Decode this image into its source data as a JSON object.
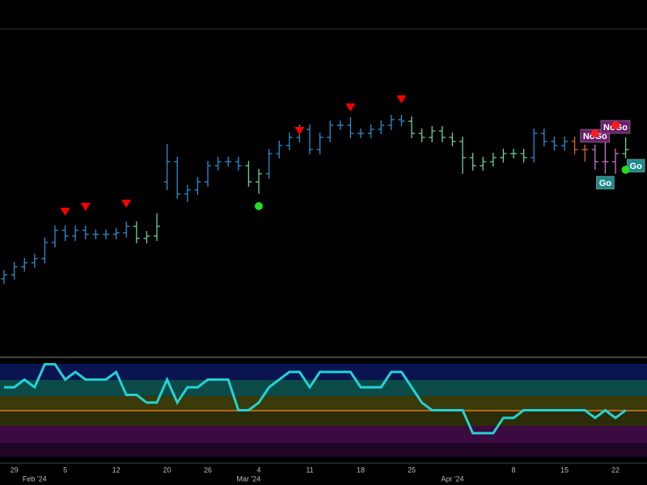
{
  "chart_data": {
    "type": "ohlc",
    "ylim": [
      0,
      404
    ],
    "open": [
      95,
      100,
      110,
      115,
      120,
      140,
      155,
      148,
      155,
      150,
      150,
      150,
      152,
      160,
      145,
      148,
      215,
      240,
      200,
      205,
      215,
      235,
      240,
      240,
      235,
      215,
      225,
      250,
      260,
      270,
      280,
      255,
      270,
      285,
      285,
      275,
      275,
      280,
      285,
      292,
      290,
      275,
      270,
      278,
      270,
      265,
      245,
      235,
      240,
      245,
      250,
      250,
      245,
      275,
      265,
      260,
      265,
      255,
      255,
      240,
      240,
      250
    ],
    "high": [
      106,
      116,
      121,
      126,
      146,
      161,
      161,
      161,
      161,
      156,
      156,
      158,
      166,
      166,
      154,
      176,
      262,
      246,
      211,
      221,
      241,
      246,
      246,
      246,
      241,
      231,
      256,
      266,
      276,
      286,
      286,
      276,
      291,
      291,
      295,
      281,
      286,
      291,
      298,
      298,
      296,
      281,
      284,
      284,
      276,
      271,
      251,
      246,
      251,
      256,
      256,
      256,
      281,
      281,
      271,
      271,
      271,
      261,
      261,
      266,
      256,
      270
    ],
    "low": [
      89,
      94,
      104,
      109,
      114,
      134,
      142,
      142,
      144,
      144,
      144,
      144,
      146,
      139,
      139,
      142,
      205,
      194,
      190,
      199,
      209,
      229,
      234,
      229,
      209,
      200,
      219,
      244,
      254,
      264,
      249,
      249,
      264,
      279,
      269,
      269,
      269,
      274,
      279,
      284,
      269,
      264,
      264,
      264,
      259,
      225,
      229,
      229,
      234,
      239,
      244,
      239,
      239,
      259,
      254,
      254,
      249,
      240,
      230,
      225,
      225,
      244
    ],
    "close": [
      100,
      110,
      115,
      120,
      140,
      155,
      148,
      155,
      150,
      150,
      150,
      152,
      160,
      145,
      148,
      160,
      240,
      200,
      205,
      215,
      235,
      240,
      240,
      235,
      215,
      225,
      250,
      260,
      270,
      280,
      255,
      270,
      285,
      285,
      275,
      275,
      280,
      285,
      292,
      290,
      275,
      270,
      278,
      270,
      265,
      245,
      235,
      240,
      245,
      250,
      250,
      245,
      275,
      265,
      260,
      265,
      255,
      255,
      240,
      240,
      250,
      255
    ],
    "bar_colors": [
      "#2b8fd0",
      "#2b8fd0",
      "#2b8fd0",
      "#2b8fd0",
      "#2b8fd0",
      "#2b8fd0",
      "#2b8fd0",
      "#2b8fd0",
      "#2b8fd0",
      "#2b8fd0",
      "#2b8fd0",
      "#2b8fd0",
      "#2b8fd0",
      "#6fcf97",
      "#6fcf97",
      "#6fcf97",
      "#2b8fd0",
      "#2b8fd0",
      "#2b8fd0",
      "#2b8fd0",
      "#2b8fd0",
      "#2b8fd0",
      "#2b8fd0",
      "#2b8fd0",
      "#6fcf97",
      "#6fcf97",
      "#2b8fd0",
      "#2b8fd0",
      "#2b8fd0",
      "#2b8fd0",
      "#2b8fd0",
      "#2b8fd0",
      "#2b8fd0",
      "#2b8fd0",
      "#2b8fd0",
      "#2b8fd0",
      "#2b8fd0",
      "#2b8fd0",
      "#2b8fd0",
      "#2b8fd0",
      "#6fcf97",
      "#6fcf97",
      "#6fcf97",
      "#6fcf97",
      "#6fcf97",
      "#6fcf97",
      "#6fcf97",
      "#6fcf97",
      "#6fcf97",
      "#6fcf97",
      "#6fcf97",
      "#6fcf97",
      "#2b8fd0",
      "#2b8fd0",
      "#2b8fd0",
      "#2b8fd0",
      "#d2691e",
      "#d2691e",
      "#d070d0",
      "#d070d0",
      "#d070d0",
      "#6fcf97"
    ],
    "categories": [
      null,
      "29",
      null,
      null,
      null,
      null,
      "5",
      null,
      null,
      null,
      null,
      "12",
      null,
      null,
      null,
      null,
      "20",
      null,
      null,
      null,
      "26",
      null,
      null,
      null,
      null,
      "4",
      null,
      null,
      null,
      null,
      "11",
      null,
      null,
      null,
      null,
      "18",
      null,
      null,
      null,
      null,
      "25",
      null,
      null,
      null,
      null,
      null,
      null,
      null,
      null,
      null,
      "8",
      null,
      null,
      null,
      null,
      "15",
      null,
      null,
      null,
      null,
      "22",
      null
    ],
    "month_labels": [
      null,
      null,
      null,
      "Feb '24",
      null,
      null,
      null,
      null,
      null,
      null,
      null,
      null,
      null,
      null,
      null,
      null,
      null,
      null,
      null,
      null,
      null,
      null,
      null,
      null,
      "Mar '24",
      null,
      null,
      null,
      null,
      null,
      null,
      null,
      null,
      null,
      null,
      null,
      null,
      null,
      null,
      null,
      null,
      null,
      null,
      null,
      "Apr '24",
      null,
      null,
      null,
      null,
      null,
      null,
      null,
      null,
      null,
      null,
      null,
      null,
      null,
      null,
      null,
      null,
      null
    ],
    "signals": [
      {
        "index": 6,
        "value": 178,
        "color": "#ff0000"
      },
      {
        "index": 8,
        "value": 184,
        "color": "#ff0000"
      },
      {
        "index": 12,
        "value": 188,
        "color": "#ff0000"
      },
      {
        "index": 29,
        "value": 278,
        "color": "#ff0000"
      },
      {
        "index": 34,
        "value": 307,
        "color": "#ff0000"
      },
      {
        "index": 39,
        "value": 317,
        "color": "#ff0000"
      }
    ],
    "dots": [
      {
        "index": 25,
        "value": 185,
        "color": "#22dd22"
      },
      {
        "index": 61,
        "value": 230,
        "color": "#22dd22"
      },
      {
        "index": 58,
        "value": 275,
        "color": "#ff1a1a"
      },
      {
        "index": 60,
        "value": 285,
        "color": "#ff1a1a"
      }
    ],
    "annotations": [
      {
        "text": "NoGo",
        "index": 58,
        "value": 272,
        "color": "#6b1f6b"
      },
      {
        "text": "NoGo",
        "index": 60,
        "value": 283,
        "color": "#6b1f6b"
      },
      {
        "text": "Go",
        "index": 59,
        "value": 214,
        "color": "#1f8a8a"
      },
      {
        "text": "Go",
        "index": 62,
        "value": 235,
        "color": "#1f8a8a"
      }
    ],
    "oscillator": {
      "ylim": [
        -3.3,
        3.3
      ],
      "color": "#22d3d3",
      "values": [
        1.5,
        1.5,
        2,
        1.5,
        3,
        3,
        2,
        2.5,
        2,
        2,
        2,
        2.5,
        1,
        1,
        0.5,
        0.5,
        2,
        0.5,
        1.5,
        1.5,
        2,
        2,
        2,
        0,
        0,
        0.5,
        1.5,
        2,
        2.5,
        2.5,
        1.5,
        2.5,
        2.5,
        2.5,
        2.5,
        1.5,
        1.5,
        1.5,
        2.5,
        2.5,
        1.5,
        0.5,
        0,
        0,
        0,
        0,
        -1.5,
        -1.5,
        -1.5,
        -0.5,
        -0.5,
        0,
        0,
        0,
        0,
        0,
        0,
        0,
        -0.5,
        0,
        -0.5,
        0
      ]
    }
  }
}
